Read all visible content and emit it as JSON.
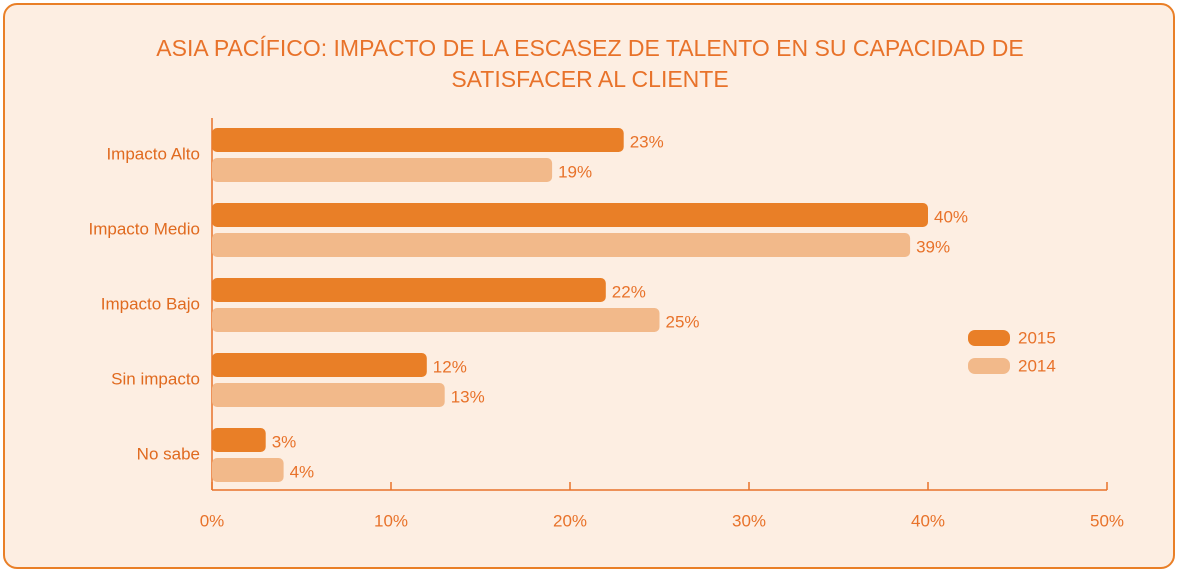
{
  "chart_data": {
    "type": "bar",
    "orientation": "horizontal",
    "title": "ASIA PACÍFICO: IMPACTO DE LA ESCASEZ DE TALENTO EN SU CAPACIDAD DE SATISFACER AL CLIENTE",
    "categories": [
      "Impacto Alto",
      "Impacto Medio",
      "Impacto Bajo",
      "Sin impacto",
      "No sabe"
    ],
    "series": [
      {
        "name": "2015",
        "color": "#e97f27",
        "values": [
          23,
          40,
          22,
          12,
          3
        ],
        "value_labels": [
          "23%",
          "40%",
          "22%",
          "12%",
          "3%"
        ]
      },
      {
        "name": "2014",
        "color": "#f2b98a",
        "values": [
          19,
          39,
          25,
          13,
          4
        ],
        "value_labels": [
          "19%",
          "39%",
          "25%",
          "13%",
          "4%"
        ]
      }
    ],
    "xlim": [
      0,
      50
    ],
    "xticks": [
      {
        "value": 0,
        "label": "0%"
      },
      {
        "value": 10,
        "label": "10%"
      },
      {
        "value": 20,
        "label": "20%"
      },
      {
        "value": 30,
        "label": "30%"
      },
      {
        "value": 40,
        "label": "40%"
      },
      {
        "value": 50,
        "label": "50%"
      }
    ],
    "legend": "right",
    "grid": false
  }
}
